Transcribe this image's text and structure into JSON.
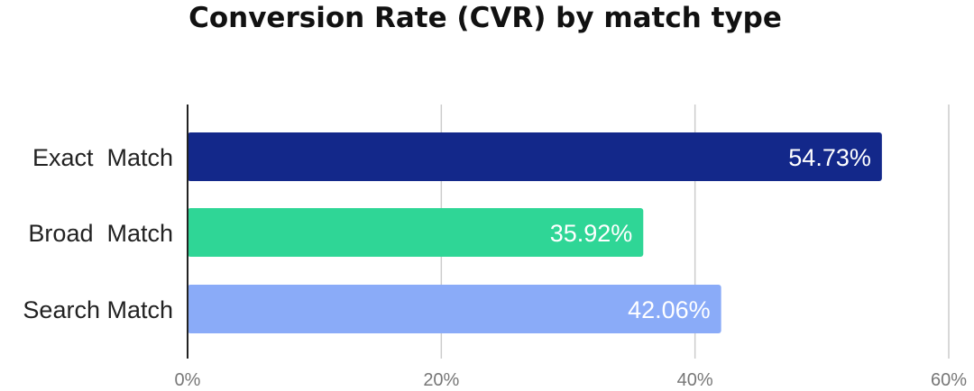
{
  "chart_data": {
    "type": "bar",
    "orientation": "horizontal",
    "title": "Conversion Rate (CVR) by match type",
    "xlabel": "",
    "ylabel": "",
    "categories": [
      "Exact  Match",
      "Broad  Match",
      "Search Match"
    ],
    "values": [
      54.73,
      35.92,
      42.06
    ],
    "value_labels": [
      "54.73%",
      "35.92%",
      "42.06%"
    ],
    "colors": [
      "#13288a",
      "#2fd696",
      "#8aabf8"
    ],
    "xlim": [
      0,
      60
    ],
    "ticks": [
      0,
      20,
      40,
      60
    ],
    "tick_labels": [
      "0%",
      "20%",
      "40%",
      "60%"
    ],
    "grid": true,
    "legend": "none"
  }
}
